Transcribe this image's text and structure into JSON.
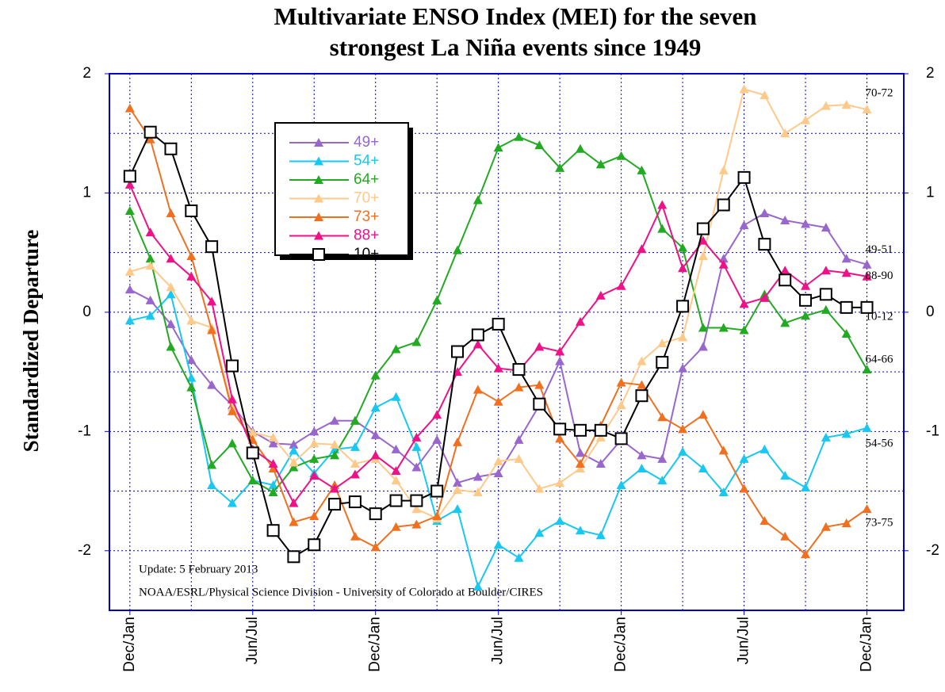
{
  "chart_data": {
    "type": "line",
    "title_lines": [
      "Multivariate ENSO Index (MEI) for the seven",
      "strongest La Niña events since 1949"
    ],
    "ylabel": "Standardized Departure",
    "notes": [
      "Update: 5 February 2013",
      "NOAA/ESRL/Physical Science Division - University of Colorado at Boulder/CIRES"
    ],
    "x": [
      0,
      1,
      2,
      3,
      4,
      5,
      6,
      7,
      8,
      9,
      10,
      11,
      12,
      13,
      14,
      15,
      16,
      17,
      18,
      19,
      20,
      21,
      22,
      23,
      24,
      25,
      26,
      27,
      28,
      29,
      30,
      31,
      32,
      33,
      34,
      35,
      36
    ],
    "xlim": [
      -1,
      37.8
    ],
    "xticks": [
      {
        "value": 0,
        "label": "Dec/Jan"
      },
      {
        "value": 6,
        "label": "Jun/Jul"
      },
      {
        "value": 12,
        "label": "Dec/Jan"
      },
      {
        "value": 18,
        "label": "Jun/Jul"
      },
      {
        "value": 24,
        "label": "Dec/Jan"
      },
      {
        "value": 30,
        "label": "Jun/Jul"
      },
      {
        "value": 36,
        "label": "Dec/Jan"
      }
    ],
    "xminor": [
      3,
      9,
      15,
      21,
      27,
      33
    ],
    "ylim": [
      -2.5,
      2
    ],
    "yticks": [
      -2,
      -1,
      0,
      1,
      2
    ],
    "yminor": [
      -1.5,
      -0.5,
      0.5,
      1.5
    ],
    "grid": true,
    "series": [
      {
        "name": "49+",
        "end_label": "49-51",
        "color": "#9966cc",
        "marker": "triangle",
        "values": [
          0.19,
          0.1,
          -0.1,
          -0.4,
          -0.61,
          -0.78,
          -1.0,
          -1.1,
          -1.11,
          -1.0,
          -0.91,
          -0.91,
          -1.03,
          -1.15,
          -1.3,
          -1.07,
          -1.43,
          -1.38,
          -1.35,
          -1.07,
          -0.78,
          -0.41,
          -1.18,
          -1.27,
          -1.07,
          -1.2,
          -1.23,
          -0.47,
          -0.29,
          0.45,
          0.73,
          0.83,
          0.77,
          0.74,
          0.71,
          0.45,
          0.4
        ]
      },
      {
        "name": "54+",
        "end_label": "54-56",
        "color": "#18c8f0",
        "marker": "triangle",
        "values": [
          -0.07,
          -0.03,
          0.15,
          -0.55,
          -1.45,
          -1.6,
          -1.41,
          -1.45,
          -1.16,
          -1.35,
          -1.15,
          -1.13,
          -0.8,
          -0.71,
          -1.13,
          -1.75,
          -1.65,
          -2.3,
          -1.95,
          -2.06,
          -1.85,
          -1.75,
          -1.83,
          -1.87,
          -1.45,
          -1.31,
          -1.41,
          -1.17,
          -1.31,
          -1.51,
          -1.23,
          -1.15,
          -1.37,
          -1.47,
          -1.05,
          -1.02,
          -0.97
        ]
      },
      {
        "name": "64+",
        "end_label": "64-66",
        "color": "#22aa22",
        "marker": "triangle",
        "values": [
          0.85,
          0.45,
          -0.29,
          -0.63,
          -1.28,
          -1.1,
          -1.41,
          -1.51,
          -1.3,
          -1.23,
          -1.2,
          -0.91,
          -0.53,
          -0.31,
          -0.25,
          0.1,
          0.52,
          0.94,
          1.38,
          1.47,
          1.4,
          1.21,
          1.37,
          1.24,
          1.31,
          1.19,
          0.7,
          0.54,
          -0.13,
          -0.13,
          -0.15,
          0.15,
          -0.09,
          -0.03,
          0.02,
          -0.18,
          -0.48
        ]
      },
      {
        "name": "70+",
        "end_label": "70-72",
        "color": "#ffc98a",
        "marker": "triangle",
        "values": [
          0.34,
          0.39,
          0.21,
          -0.07,
          -0.13,
          -0.8,
          -1.01,
          -1.05,
          -1.26,
          -1.1,
          -1.11,
          -1.27,
          -1.23,
          -1.41,
          -1.65,
          -1.73,
          -1.49,
          -1.51,
          -1.25,
          -1.23,
          -1.48,
          -1.43,
          -1.31,
          -1.05,
          -0.78,
          -0.41,
          -0.26,
          -0.21,
          0.47,
          1.19,
          1.87,
          1.82,
          1.5,
          1.61,
          1.73,
          1.74,
          1.7
        ]
      },
      {
        "name": "73+",
        "end_label": "73-75",
        "color": "#f07020",
        "marker": "triangle",
        "values": [
          1.71,
          1.45,
          0.83,
          0.47,
          -0.15,
          -0.83,
          -1.07,
          -1.31,
          -1.76,
          -1.71,
          -1.45,
          -1.88,
          -1.97,
          -1.8,
          -1.78,
          -1.71,
          -1.09,
          -0.65,
          -0.75,
          -0.63,
          -0.61,
          -1.06,
          -1.27,
          -0.95,
          -0.59,
          -0.61,
          -0.88,
          -0.98,
          -0.86,
          -1.16,
          -1.48,
          -1.75,
          -1.88,
          -2.03,
          -1.8,
          -1.77,
          -1.65
        ]
      },
      {
        "name": "88+",
        "end_label": "88-90",
        "color": "#ee1188",
        "marker": "triangle",
        "values": [
          1.07,
          0.67,
          0.45,
          0.3,
          0.09,
          -0.73,
          -1.15,
          -1.27,
          -1.6,
          -1.37,
          -1.48,
          -1.36,
          -1.2,
          -1.33,
          -1.05,
          -0.86,
          -0.5,
          -0.27,
          -0.47,
          -0.49,
          -0.29,
          -0.33,
          -0.08,
          0.14,
          0.22,
          0.53,
          0.9,
          0.37,
          0.6,
          0.4,
          0.07,
          0.12,
          0.35,
          0.22,
          0.35,
          0.33,
          0.3
        ]
      },
      {
        "name": "10+",
        "end_label": "10-12",
        "color": "#000000",
        "marker": "square",
        "values": [
          1.14,
          1.51,
          1.37,
          0.85,
          0.55,
          -0.45,
          -1.18,
          -1.83,
          -2.05,
          -1.95,
          -1.61,
          -1.59,
          -1.69,
          -1.58,
          -1.58,
          -1.5,
          -0.33,
          -0.19,
          -0.1,
          -0.48,
          -0.77,
          -0.98,
          -0.99,
          -0.99,
          -1.06,
          -0.7,
          -0.42,
          0.05,
          0.7,
          0.9,
          1.13,
          0.57,
          0.27,
          0.1,
          0.15,
          0.04,
          0.04
        ]
      }
    ]
  }
}
